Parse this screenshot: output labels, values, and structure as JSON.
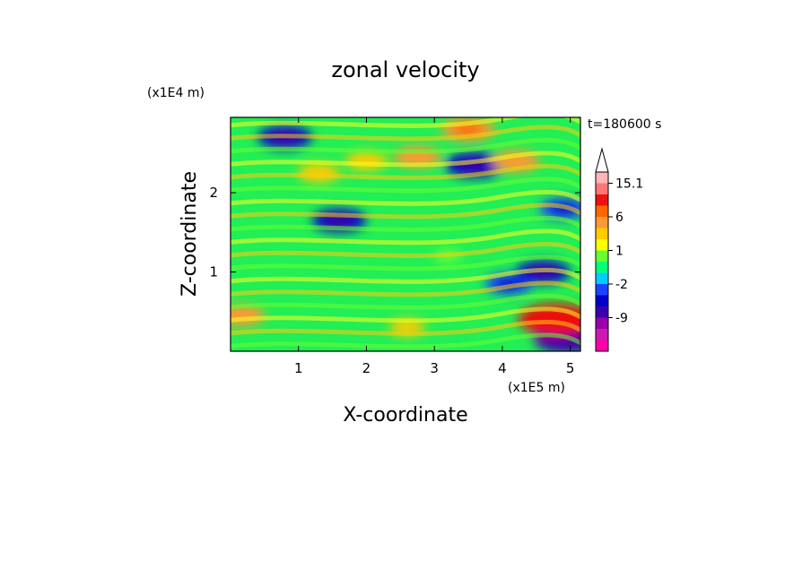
{
  "chart_data": {
    "type": "heatmap",
    "title": "zonal velocity",
    "xlabel": "X-coordinate",
    "ylabel": "Z-coordinate",
    "x_unit": "(x1E5 m)",
    "y_unit": "(x1E4 m)",
    "time_label": "t=180600 s",
    "xlim": [
      0,
      5.15
    ],
    "ylim": [
      0,
      2.95
    ],
    "x_ticks": [
      "1",
      "2",
      "3",
      "4",
      "5"
    ],
    "x_tick_values": [
      1,
      2,
      3,
      4,
      5
    ],
    "y_ticks": [
      "1",
      "2"
    ],
    "y_tick_values": [
      1,
      2
    ],
    "colorbar": {
      "labels": [
        "15.1",
        "6",
        "1",
        "-2",
        "-9"
      ],
      "label_values": [
        15.1,
        6,
        1,
        -2,
        -9
      ],
      "levels": [
        -15,
        -12,
        -9,
        -6,
        -4,
        -2,
        -1,
        0,
        1,
        2,
        4,
        6,
        9,
        12,
        15.1
      ],
      "colors": [
        "#ff00aa",
        "#cc1ab0",
        "#9900aa",
        "#3a00aa",
        "#0000cc",
        "#1a44ff",
        "#00ccff",
        "#00ff7a",
        "#66ff33",
        "#ffff00",
        "#ffcc00",
        "#ff9933",
        "#ff6600",
        "#ee1111",
        "#ff7777",
        "#ffb6b6"
      ]
    },
    "features": [
      {
        "x": 1.6,
        "z": 1.65,
        "value": -5
      },
      {
        "x": 3.6,
        "z": 2.35,
        "value": -6
      },
      {
        "x": 0.8,
        "z": 2.7,
        "value": -5
      },
      {
        "x": 4.1,
        "z": 0.85,
        "value": -4
      },
      {
        "x": 4.6,
        "z": 1.0,
        "value": -5
      },
      {
        "x": 4.95,
        "z": 0.15,
        "value": -7
      },
      {
        "x": 4.9,
        "z": 1.8,
        "value": -4
      },
      {
        "x": 1.3,
        "z": 2.25,
        "value": 3
      },
      {
        "x": 2.0,
        "z": 2.4,
        "value": 3
      },
      {
        "x": 2.75,
        "z": 2.45,
        "value": 4
      },
      {
        "x": 3.5,
        "z": 2.8,
        "value": 5
      },
      {
        "x": 4.2,
        "z": 2.4,
        "value": 4
      },
      {
        "x": 4.8,
        "z": 0.4,
        "value": 9
      },
      {
        "x": 0.15,
        "z": 0.45,
        "value": 4
      },
      {
        "x": 2.6,
        "z": 0.3,
        "value": 2
      },
      {
        "x": 3.2,
        "z": 1.2,
        "value": 0.5
      }
    ]
  }
}
